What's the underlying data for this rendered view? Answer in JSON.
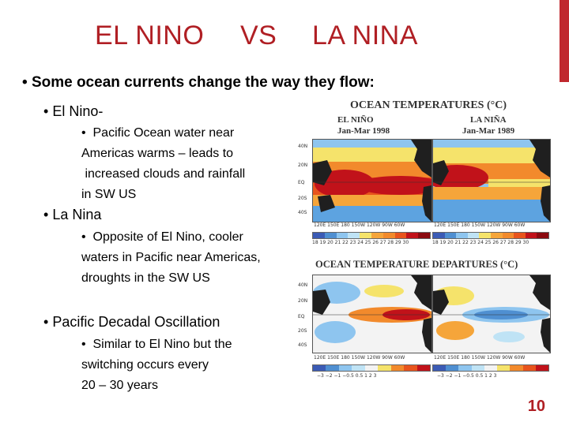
{
  "slide": {
    "title_parts": [
      "EL NINO",
      "VS",
      "LA NINA"
    ],
    "main_bullet": "Some ocean currents change the way they flow:",
    "sections": [
      {
        "label": "El Nino-",
        "details": "Pacific Ocean water near\nAmericas warms – leads to\n increased clouds and rainfall\nin SW US"
      },
      {
        "label": "La Nina",
        "details": "Opposite of El Nino, cooler\nwaters in Pacific near Americas,\ndroughts in the SW US"
      },
      {
        "label": "Pacific Decadal Oscillation",
        "details": "Similar to El Nino but the\nswitching occurs every\n20 – 30 years"
      }
    ],
    "page_number": "10"
  },
  "figure": {
    "title_top": "OCEAN TEMPERATURES (°C)",
    "left_name": "EL NIÑO",
    "left_period": "Jan-Mar 1998",
    "right_name": "LA NIÑA",
    "right_period": "Jan-Mar 1989",
    "title_bottom": "OCEAN TEMPERATURE DEPARTURES (°C)",
    "lat_labels": [
      "40N",
      "20N",
      "EQ",
      "20S",
      "40S"
    ],
    "lon_labels": "120E  150E  180  150W  120W  90W  60W",
    "temp_ticks": "18 19 20 21 22 23 24 25 26 27 28 29 30",
    "anomaly_ticks": "−3  −2  −1 −0.5 0.5  1  2  3",
    "colors": {
      "title": "#b01f24",
      "accent_bar": "#c0282e",
      "warm": "#e8541d",
      "hot": "#c1121a",
      "cool": "#4f8fd1",
      "land": "#1f1f1f"
    }
  }
}
